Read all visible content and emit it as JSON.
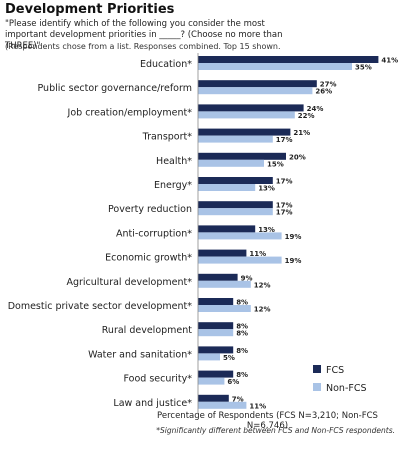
{
  "header": {
    "title": "Development Priorities",
    "question": "\"Please identify which of the following you consider the most important development priorities in _____? (Choose no more than THREE)\"",
    "note": "(Respondents chose from a list. Responses combined. Top 15 shown."
  },
  "footer": {
    "xlabel": "Percentage of Respondents (FCS N=3,210; Non-FCS N=6,746)",
    "significance": "*Significantly different between FCS and Non-FCS respondents."
  },
  "colors": {
    "fcs": "#1b2a57",
    "nonfcs": "#a9c3e6"
  },
  "chart_data": {
    "type": "bar",
    "orientation": "horizontal",
    "categories": [
      "Education*",
      "Public sector governance/reform",
      "Job creation/employment*",
      "Transport*",
      "Health*",
      "Energy*",
      "Poverty reduction",
      "Anti-corruption*",
      "Economic growth*",
      "Agricultural development*",
      "Domestic private sector development*",
      "Rural development",
      "Water and sanitation*",
      "Food security*",
      "Law and justice*"
    ],
    "series": [
      {
        "name": "FCS",
        "values": [
          41,
          27,
          24,
          21,
          20,
          17,
          17,
          13,
          11,
          9,
          8,
          8,
          8,
          8,
          7
        ]
      },
      {
        "name": "Non-FCS",
        "values": [
          35,
          26,
          22,
          17,
          15,
          13,
          17,
          19,
          19,
          12,
          12,
          8,
          5,
          6,
          11
        ]
      }
    ],
    "xlabel": "Percentage of Respondents (FCS N=3,210; Non-FCS N=6,746)",
    "xlim": [
      0,
      45
    ],
    "legend_position": "bottom-right",
    "grid": false
  }
}
